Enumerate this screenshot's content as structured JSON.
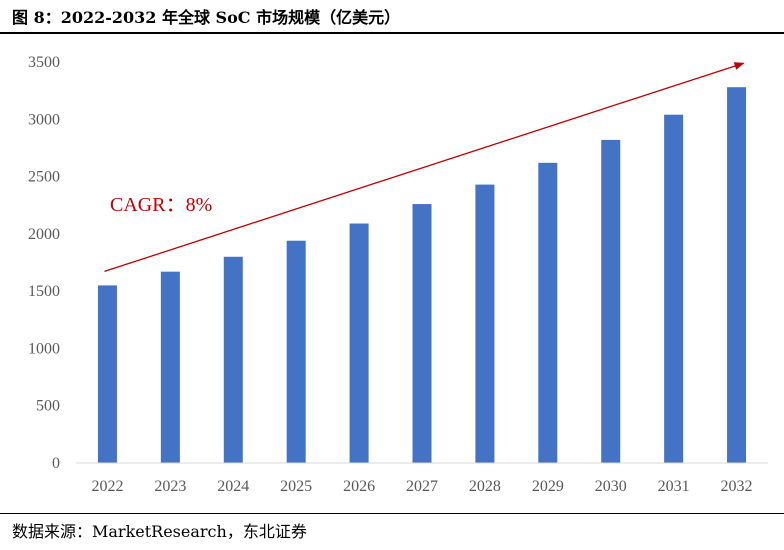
{
  "title": "图 8：2022-2032 年全球 SoC 市场规模（亿美元）",
  "source": "数据来源：MarketResearch，东北证券",
  "chart_data": {
    "type": "bar",
    "categories": [
      "2022",
      "2023",
      "2024",
      "2025",
      "2026",
      "2027",
      "2028",
      "2029",
      "2030",
      "2031",
      "2032"
    ],
    "values": [
      1550,
      1670,
      1800,
      1940,
      2090,
      2260,
      2430,
      2620,
      2820,
      3040,
      3280
    ],
    "ylim": [
      0,
      3500
    ],
    "yticks": [
      0,
      500,
      1000,
      1500,
      2000,
      2500,
      3000,
      3500
    ],
    "bar_color": "#4472c4",
    "annotation": {
      "text": "CAGR：8%",
      "color": "#c00000"
    },
    "trend_arrow_color": "#c00000",
    "grid": false,
    "legend": "none"
  }
}
